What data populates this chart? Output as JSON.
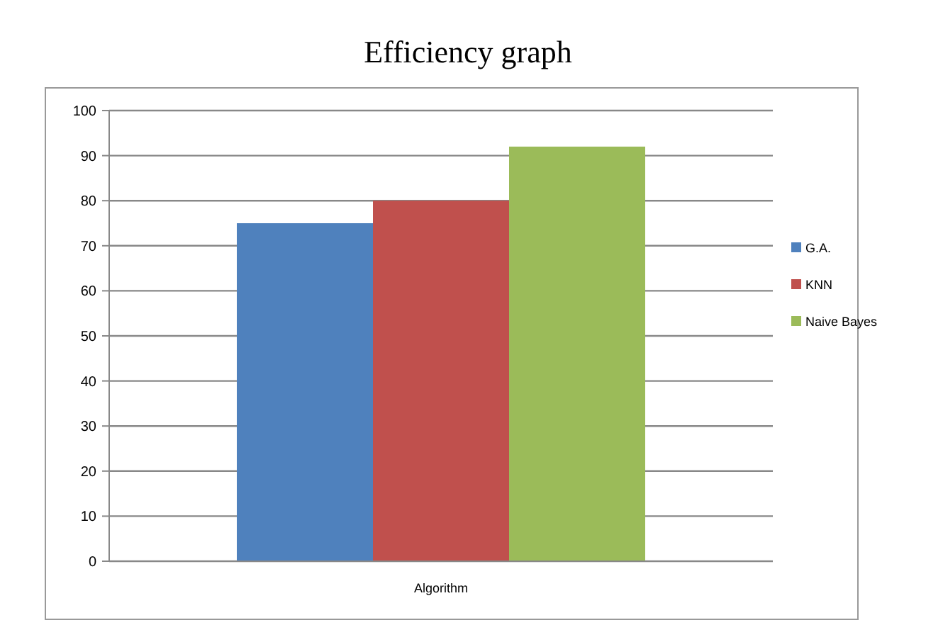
{
  "chart_data": {
    "type": "bar",
    "title": "Efficiency graph",
    "categories": [
      "Algorithm"
    ],
    "series": [
      {
        "name": "G.A.",
        "color": "#4f81bd",
        "values": [
          75
        ]
      },
      {
        "name": "KNN",
        "color": "#c0504d",
        "values": [
          80
        ]
      },
      {
        "name": "Naive Bayes",
        "color": "#9bbb59",
        "values": [
          92
        ]
      }
    ],
    "ylim": [
      0,
      100
    ],
    "yticks": [
      0,
      10,
      20,
      30,
      40,
      50,
      60,
      70,
      80,
      90,
      100
    ],
    "grid": "y",
    "legend": "right"
  }
}
